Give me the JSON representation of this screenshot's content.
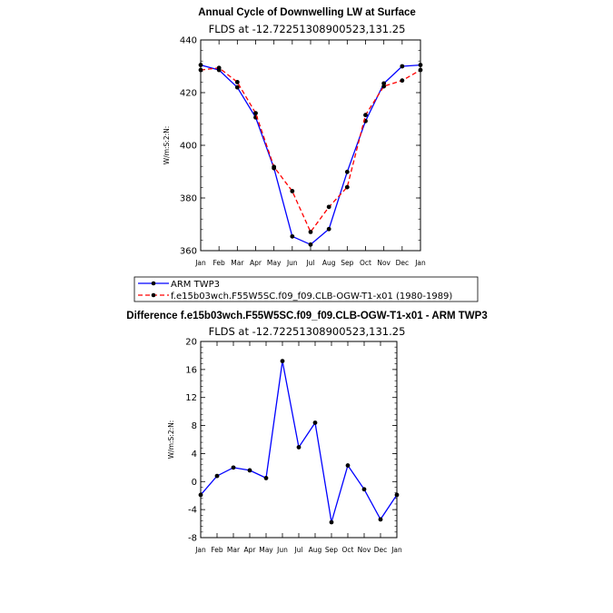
{
  "chart_data": [
    {
      "type": "line",
      "title": "Annual Cycle of Downwelling LW at Surface",
      "subtitle": "FLDS at -12.72251308900523,131.25",
      "ylabel": "W/m:S:2:N:",
      "xlabel": "",
      "ylim": [
        360,
        440
      ],
      "yticks": [
        360,
        380,
        400,
        420,
        440
      ],
      "categories": [
        "Jan",
        "Feb",
        "Mar",
        "Apr",
        "May",
        "Jun",
        "Jul",
        "Aug",
        "Sep",
        "Oct",
        "Nov",
        "Dec",
        "Jan"
      ],
      "series": [
        {
          "name": "ARM TWP3",
          "color": "#0000ff",
          "dash": "solid",
          "values": [
            430.5,
            428.6,
            422.0,
            410.6,
            391.3,
            365.4,
            362.3,
            368.2,
            389.9,
            409.2,
            423.5,
            430.0,
            430.5
          ]
        },
        {
          "name": "f.e15b03wch.F55W5SC.f09_f09.CLB-OGW-T1-x01 (1980-1989)",
          "color": "#ff0000",
          "dash": "dashed",
          "values": [
            428.6,
            429.4,
            424.0,
            412.2,
            391.8,
            382.6,
            367.1,
            376.6,
            384.1,
            411.5,
            422.4,
            424.6,
            428.6
          ]
        }
      ],
      "legend": "below"
    },
    {
      "type": "line",
      "title": "Difference f.e15b03wch.F55W5SC.f09_f09.CLB-OGW-T1-x01 - ARM TWP3",
      "subtitle": "FLDS at -12.72251308900523,131.25",
      "ylabel": "W/m:S:2:N:",
      "xlabel": "",
      "ylim": [
        -8,
        20
      ],
      "yticks": [
        -8,
        -4,
        0,
        4,
        8,
        12,
        16,
        20
      ],
      "categories": [
        "Jan",
        "Feb",
        "Mar",
        "Apr",
        "May",
        "Jun",
        "Jul",
        "Aug",
        "Sep",
        "Oct",
        "Nov",
        "Dec",
        "Jan"
      ],
      "series": [
        {
          "name": "Difference",
          "color": "#0000ff",
          "dash": "solid",
          "values": [
            -1.9,
            0.8,
            2.0,
            1.6,
            0.5,
            17.2,
            4.9,
            8.4,
            -5.8,
            2.3,
            -1.1,
            -5.4,
            -1.9
          ]
        }
      ]
    }
  ]
}
